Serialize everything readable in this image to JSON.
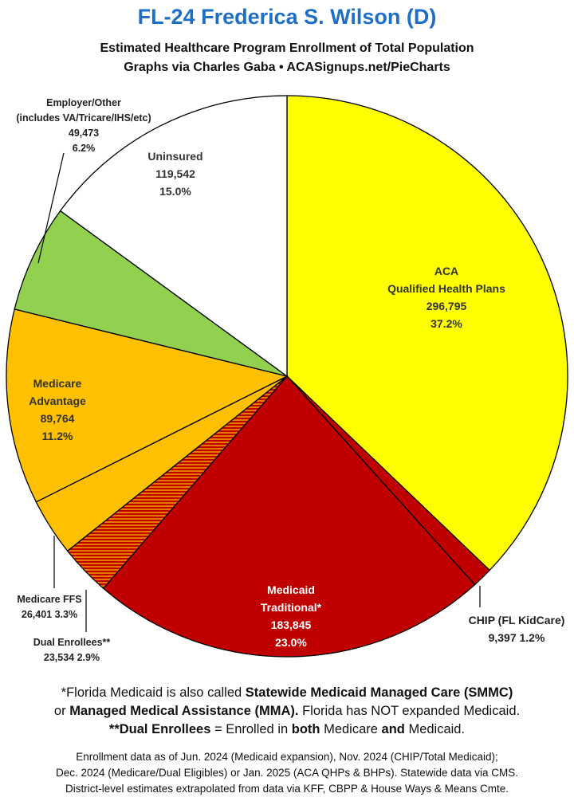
{
  "header": {
    "title": "FL-24 Frederica S. Wilson (D)",
    "subtitle": "Estimated Healthcare Program Enrollment of Total Population",
    "credit": "Graphs via Charles Gaba  •  ACASignups.net/PieCharts"
  },
  "chart_data": {
    "type": "pie",
    "slices": [
      {
        "key": "aca",
        "name": "ACA Qualified Health Plans",
        "value": 296795,
        "percent": 37.2,
        "color": "#ffff00",
        "label_lines": [
          "ACA",
          "Qualified Health Plans",
          "296,795",
          "37.2%"
        ]
      },
      {
        "key": "chip",
        "name": "CHIP (FL KidCare)",
        "value": 9397,
        "percent": 1.2,
        "color": "#c00000",
        "label_lines": [
          "CHIP (FL KidCare)",
          "9,397 1.2%"
        ]
      },
      {
        "key": "medicaid",
        "name": "Medicaid Traditional*",
        "value": 183845,
        "percent": 23.0,
        "color": "#c00000",
        "label_lines": [
          "Medicaid",
          "Traditional*",
          "183,845",
          "23.0%"
        ]
      },
      {
        "key": "dual",
        "name": "Dual Enrollees**",
        "value": 23534,
        "percent": 2.9,
        "color": "#e87a00",
        "pattern": "hatched",
        "label_lines": [
          "Dual Enrollees**",
          "23,534 2.9%"
        ]
      },
      {
        "key": "ffs",
        "name": "Medicare FFS",
        "value": 26401,
        "percent": 3.3,
        "color": "#ffc000",
        "label_lines": [
          "Medicare FFS",
          "26,401 3.3%"
        ]
      },
      {
        "key": "ma",
        "name": "Medicare Advantage",
        "value": 89764,
        "percent": 11.2,
        "color": "#ffc000",
        "label_lines": [
          "Medicare",
          "Advantage",
          "89,764",
          "11.2%"
        ]
      },
      {
        "key": "employer",
        "name": "Employer/Other (includes VA/Tricare/IHS/etc)",
        "value": 49473,
        "percent": 6.2,
        "color": "#92d050",
        "label_lines": [
          "Employer/Other",
          "(includes VA/Tricare/IHS/etc)",
          "49,473",
          "6.2%"
        ]
      },
      {
        "key": "uninsured",
        "name": "Uninsured",
        "value": 119542,
        "percent": 15.0,
        "color": "#ffffff",
        "label_lines": [
          "Uninsured",
          "119,542",
          "15.0%"
        ]
      }
    ]
  },
  "notes": {
    "line1_pre": "*Florida Medicaid is also called ",
    "line1_bold": "Statewide Medicaid Managed Care (SMMC)",
    "line2_pre": "or ",
    "line2_bold": "Managed Medical Assistance (MMA).",
    "line2_post": " Florida has NOT expanded Medicaid.",
    "line3_bold": "**Dual Enrollees",
    "line3_mid": " = Enrolled in ",
    "line3_b2": "both",
    "line3_mid2": " Medicare ",
    "line3_b3": "and",
    "line3_post": " Medicaid.",
    "source1": "Enrollment data as of Jun. 2024 (Medicaid expansion), Nov. 2024 (CHIP/Total Medicaid);",
    "source2": "Dec. 2024 (Medicare/Dual Eligibles) or Jan. 2025 (ACA QHPs & BHPs). Statewide data via CMS.",
    "source3": "District-level estimates extrapolated from data via KFF, CBPP & House Ways & Means Cmte."
  }
}
